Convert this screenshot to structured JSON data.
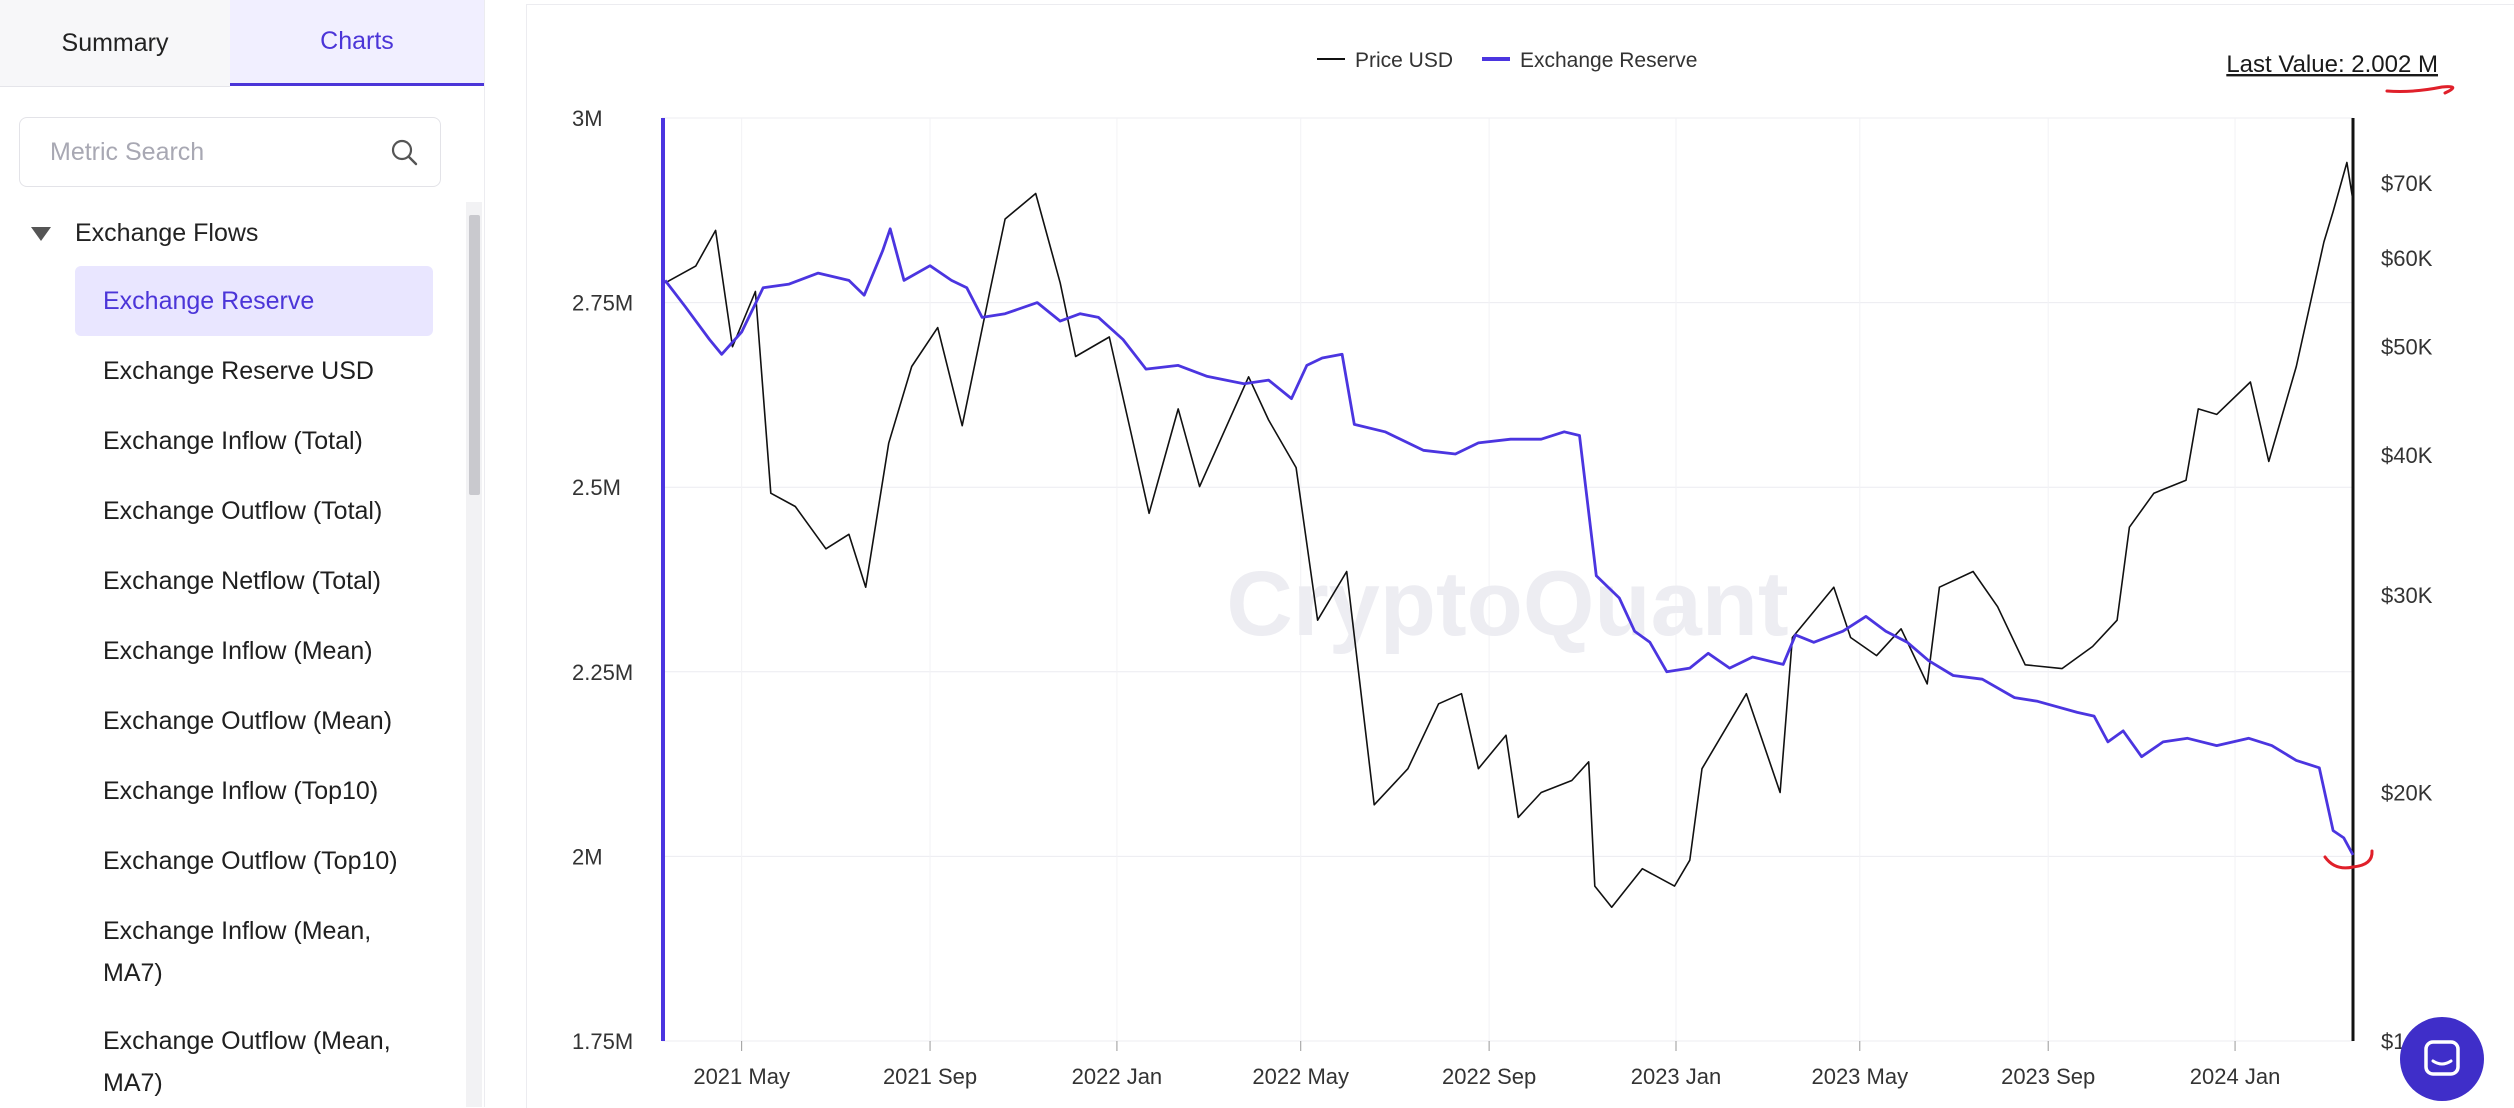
{
  "tabs": {
    "summary": "Summary",
    "charts": "Charts"
  },
  "search": {
    "placeholder": "Metric Search"
  },
  "sidebar": {
    "group": "Exchange Flows",
    "items": [
      "Exchange Reserve",
      "Exchange Reserve USD",
      "Exchange Inflow (Total)",
      "Exchange Outflow (Total)",
      "Exchange Netflow (Total)",
      "Exchange Inflow (Mean)",
      "Exchange Outflow (Mean)",
      "Exchange Inflow (Top10)",
      "Exchange Outflow (Top10)",
      "Exchange Inflow (Mean, MA7)",
      "Exchange Outflow (Mean, MA7)"
    ],
    "active_index": 0
  },
  "colors": {
    "accent": "#4b35d8",
    "reserve_line": "#4b35e0",
    "price_line": "#111111",
    "annotation": "#e0202a"
  },
  "chart": {
    "last_value": "Last Value: 2.002 M",
    "watermark": "CryptoQuant"
  },
  "chart_data": {
    "type": "line",
    "legend_placement": "top-center",
    "grid": true,
    "x_tick_labels": [
      "2021 May",
      "2021 Sep",
      "2022 Jan",
      "2022 May",
      "2022 Sep",
      "2023 Jan",
      "2023 May",
      "2023 Sep",
      "2024 Jan"
    ],
    "x_range": [
      "2021-03-10",
      "2024-03-18"
    ],
    "y_left": {
      "tick_labels": [
        "3M",
        "2.75M",
        "2.5M",
        "2.25M",
        "2M",
        "1.75M"
      ],
      "range": [
        1750000,
        3000000
      ]
    },
    "y_right": {
      "scale": "log",
      "tick_labels": [
        "$70K",
        "$60K",
        "$50K",
        "$40K",
        "$30K",
        "$20K",
        "$1"
      ],
      "range": [
        12000,
        80000
      ]
    },
    "series": [
      {
        "name": "Price USD",
        "axis": "right",
        "points": [
          [
            "2021-03-12",
            57000
          ],
          [
            "2021-04-01",
            59000
          ],
          [
            "2021-04-14",
            63500
          ],
          [
            "2021-04-25",
            50000
          ],
          [
            "2021-05-10",
            56000
          ],
          [
            "2021-05-20",
            37000
          ],
          [
            "2021-06-05",
            36000
          ],
          [
            "2021-06-25",
            33000
          ],
          [
            "2021-07-10",
            34000
          ],
          [
            "2021-07-21",
            30500
          ],
          [
            "2021-08-05",
            41000
          ],
          [
            "2021-08-20",
            48000
          ],
          [
            "2021-09-06",
            52000
          ],
          [
            "2021-09-22",
            42500
          ],
          [
            "2021-10-10",
            56000
          ],
          [
            "2021-10-20",
            65000
          ],
          [
            "2021-11-09",
            68500
          ],
          [
            "2021-11-25",
            57000
          ],
          [
            "2021-12-05",
            49000
          ],
          [
            "2021-12-27",
            51000
          ],
          [
            "2022-01-10",
            42000
          ],
          [
            "2022-01-22",
            35500
          ],
          [
            "2022-02-10",
            44000
          ],
          [
            "2022-02-24",
            37500
          ],
          [
            "2022-03-28",
            47000
          ],
          [
            "2022-04-10",
            43000
          ],
          [
            "2022-04-28",
            39000
          ],
          [
            "2022-05-12",
            28500
          ],
          [
            "2022-05-31",
            31500
          ],
          [
            "2022-06-18",
            19500
          ],
          [
            "2022-07-10",
            21000
          ],
          [
            "2022-07-30",
            24000
          ],
          [
            "2022-08-14",
            24500
          ],
          [
            "2022-08-25",
            21000
          ],
          [
            "2022-09-12",
            22500
          ],
          [
            "2022-09-20",
            19000
          ],
          [
            "2022-10-05",
            20000
          ],
          [
            "2022-10-25",
            20500
          ],
          [
            "2022-11-05",
            21300
          ],
          [
            "2022-11-09",
            16500
          ],
          [
            "2022-11-20",
            15800
          ],
          [
            "2022-12-10",
            17100
          ],
          [
            "2022-12-31",
            16500
          ],
          [
            "2023-01-10",
            17400
          ],
          [
            "2023-01-18",
            21000
          ],
          [
            "2023-02-16",
            24500
          ],
          [
            "2023-03-10",
            20000
          ],
          [
            "2023-03-18",
            27500
          ],
          [
            "2023-04-14",
            30500
          ],
          [
            "2023-04-25",
            27500
          ],
          [
            "2023-05-12",
            26500
          ],
          [
            "2023-05-28",
            28000
          ],
          [
            "2023-06-14",
            25000
          ],
          [
            "2023-06-22",
            30500
          ],
          [
            "2023-07-14",
            31500
          ],
          [
            "2023-07-30",
            29300
          ],
          [
            "2023-08-17",
            26000
          ],
          [
            "2023-09-10",
            25800
          ],
          [
            "2023-09-30",
            27000
          ],
          [
            "2023-10-16",
            28500
          ],
          [
            "2023-10-24",
            34500
          ],
          [
            "2023-11-09",
            37000
          ],
          [
            "2023-11-30",
            38000
          ],
          [
            "2023-12-08",
            44000
          ],
          [
            "2023-12-20",
            43500
          ],
          [
            "2024-01-11",
            46500
          ],
          [
            "2024-01-23",
            39500
          ],
          [
            "2024-02-10",
            48000
          ],
          [
            "2024-02-28",
            62000
          ],
          [
            "2024-03-05",
            66000
          ],
          [
            "2024-03-14",
            73000
          ],
          [
            "2024-03-18",
            67500
          ]
        ]
      },
      {
        "name": "Exchange Reserve",
        "axis": "left",
        "points": [
          [
            "2021-03-12",
            2780000
          ],
          [
            "2021-03-25",
            2745000
          ],
          [
            "2021-04-10",
            2700000
          ],
          [
            "2021-04-18",
            2680000
          ],
          [
            "2021-05-01",
            2710000
          ],
          [
            "2021-05-15",
            2770000
          ],
          [
            "2021-06-01",
            2775000
          ],
          [
            "2021-06-20",
            2790000
          ],
          [
            "2021-07-10",
            2780000
          ],
          [
            "2021-07-20",
            2760000
          ],
          [
            "2021-08-01",
            2820000
          ],
          [
            "2021-08-06",
            2850000
          ],
          [
            "2021-08-15",
            2780000
          ],
          [
            "2021-09-01",
            2800000
          ],
          [
            "2021-09-15",
            2780000
          ],
          [
            "2021-09-25",
            2770000
          ],
          [
            "2021-10-05",
            2730000
          ],
          [
            "2021-10-20",
            2735000
          ],
          [
            "2021-11-10",
            2750000
          ],
          [
            "2021-11-25",
            2725000
          ],
          [
            "2021-12-08",
            2735000
          ],
          [
            "2021-12-20",
            2730000
          ],
          [
            "2022-01-05",
            2700000
          ],
          [
            "2022-01-20",
            2660000
          ],
          [
            "2022-02-10",
            2665000
          ],
          [
            "2022-03-01",
            2650000
          ],
          [
            "2022-03-25",
            2640000
          ],
          [
            "2022-04-10",
            2645000
          ],
          [
            "2022-04-25",
            2620000
          ],
          [
            "2022-05-05",
            2665000
          ],
          [
            "2022-05-15",
            2675000
          ],
          [
            "2022-05-28",
            2680000
          ],
          [
            "2022-06-05",
            2585000
          ],
          [
            "2022-06-25",
            2575000
          ],
          [
            "2022-07-20",
            2550000
          ],
          [
            "2022-08-10",
            2545000
          ],
          [
            "2022-08-25",
            2560000
          ],
          [
            "2022-09-15",
            2565000
          ],
          [
            "2022-10-05",
            2565000
          ],
          [
            "2022-10-20",
            2575000
          ],
          [
            "2022-10-30",
            2570000
          ],
          [
            "2022-11-10",
            2380000
          ],
          [
            "2022-11-25",
            2350000
          ],
          [
            "2022-12-05",
            2305000
          ],
          [
            "2022-12-15",
            2290000
          ],
          [
            "2022-12-26",
            2250000
          ],
          [
            "2023-01-10",
            2255000
          ],
          [
            "2023-01-22",
            2275000
          ],
          [
            "2023-02-05",
            2255000
          ],
          [
            "2023-02-20",
            2270000
          ],
          [
            "2023-03-12",
            2260000
          ],
          [
            "2023-03-20",
            2300000
          ],
          [
            "2023-04-01",
            2290000
          ],
          [
            "2023-04-20",
            2305000
          ],
          [
            "2023-05-05",
            2325000
          ],
          [
            "2023-05-18",
            2305000
          ],
          [
            "2023-06-01",
            2290000
          ],
          [
            "2023-06-15",
            2265000
          ],
          [
            "2023-07-01",
            2245000
          ],
          [
            "2023-07-20",
            2240000
          ],
          [
            "2023-08-10",
            2215000
          ],
          [
            "2023-08-25",
            2210000
          ],
          [
            "2023-09-20",
            2195000
          ],
          [
            "2023-10-01",
            2190000
          ],
          [
            "2023-10-10",
            2155000
          ],
          [
            "2023-10-20",
            2170000
          ],
          [
            "2023-11-01",
            2135000
          ],
          [
            "2023-11-15",
            2155000
          ],
          [
            "2023-12-01",
            2160000
          ],
          [
            "2023-12-20",
            2150000
          ],
          [
            "2024-01-10",
            2160000
          ],
          [
            "2024-01-25",
            2150000
          ],
          [
            "2024-02-10",
            2130000
          ],
          [
            "2024-02-25",
            2120000
          ],
          [
            "2024-03-05",
            2035000
          ],
          [
            "2024-03-12",
            2025000
          ],
          [
            "2024-03-18",
            2002000
          ]
        ]
      }
    ]
  }
}
